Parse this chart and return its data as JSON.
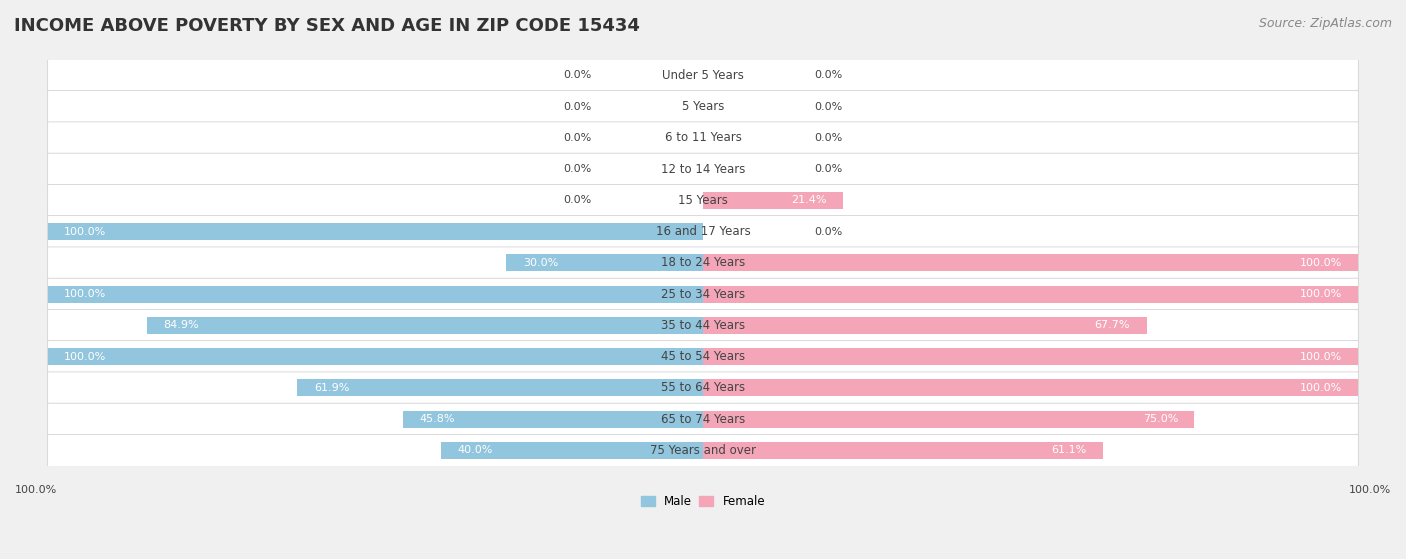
{
  "title": "INCOME ABOVE POVERTY BY SEX AND AGE IN ZIP CODE 15434",
  "source": "Source: ZipAtlas.com",
  "categories": [
    "Under 5 Years",
    "5 Years",
    "6 to 11 Years",
    "12 to 14 Years",
    "15 Years",
    "16 and 17 Years",
    "18 to 24 Years",
    "25 to 34 Years",
    "35 to 44 Years",
    "45 to 54 Years",
    "55 to 64 Years",
    "65 to 74 Years",
    "75 Years and over"
  ],
  "male_values": [
    0.0,
    0.0,
    0.0,
    0.0,
    0.0,
    100.0,
    30.0,
    100.0,
    84.9,
    100.0,
    61.9,
    45.8,
    40.0
  ],
  "female_values": [
    0.0,
    0.0,
    0.0,
    0.0,
    21.4,
    0.0,
    100.0,
    100.0,
    67.7,
    100.0,
    100.0,
    75.0,
    61.1
  ],
  "male_color": "#92c5de",
  "female_color": "#f4a6b8",
  "male_label": "Male",
  "female_label": "Female",
  "background_color": "#f0f0f0",
  "row_color": "#ffffff",
  "title_fontsize": 13,
  "source_fontsize": 9,
  "label_fontsize": 8.5,
  "value_fontsize": 8,
  "bar_height": 0.55,
  "max_val": 100.0
}
